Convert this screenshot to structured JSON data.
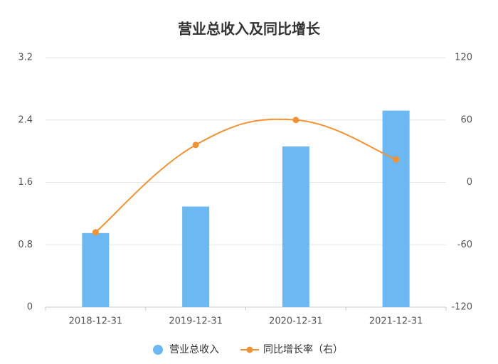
{
  "chart_data": {
    "type": "bar-line",
    "title": "营业总收入及同比增长",
    "categories": [
      "2018-12-31",
      "2019-12-31",
      "2020-12-31",
      "2021-12-31"
    ],
    "series": [
      {
        "name": "营业总收入",
        "type": "bar",
        "color": "#6cb8f2",
        "values": [
          0.95,
          1.29,
          2.06,
          2.52
        ]
      },
      {
        "name": "同比增长率（右）",
        "type": "line",
        "axis": "y2",
        "color": "#f29234",
        "values": [
          -48,
          36,
          60,
          22
        ]
      }
    ],
    "ylim": [
      0,
      3.2
    ],
    "yticks": [
      0,
      0.8,
      1.6,
      2.4,
      3.2
    ],
    "y2lim": [
      -120,
      120
    ],
    "y2ticks": [
      -120,
      -60,
      0,
      60,
      120
    ],
    "grid": true,
    "legend": "bottom"
  }
}
